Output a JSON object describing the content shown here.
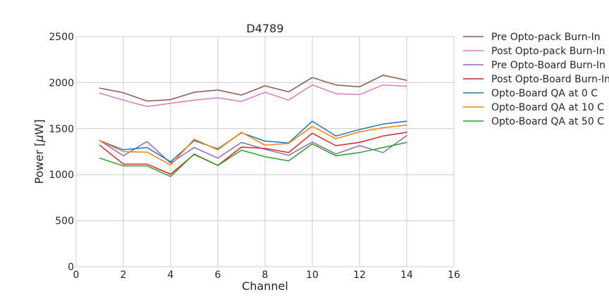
{
  "chart_data": {
    "type": "line",
    "title": "D4789",
    "xlabel": "Channel",
    "ylabel_prefix": "Power [",
    "ylabel_unit_mu": "μ",
    "ylabel_suffix": "W]",
    "xlim": [
      0,
      16
    ],
    "ylim": [
      0,
      2500
    ],
    "xticks": [
      0,
      2,
      4,
      6,
      8,
      10,
      12,
      14,
      16
    ],
    "yticks": [
      0,
      500,
      1000,
      1500,
      2000,
      2500
    ],
    "grid": true,
    "legend_position": "outside-right",
    "x": [
      1,
      2,
      3,
      4,
      5,
      6,
      7,
      8,
      9,
      10,
      11,
      12,
      13,
      14
    ],
    "series": [
      {
        "name": "Pre Opto-pack Burn-In",
        "color": "#8c564b",
        "values": [
          1940,
          1890,
          1800,
          1815,
          1895,
          1920,
          1865,
          1965,
          1900,
          2055,
          1975,
          1955,
          2080,
          2025
        ]
      },
      {
        "name": "Post Opto-pack Burn-In",
        "color": "#e377c2",
        "values": [
          1885,
          1810,
          1740,
          1775,
          1810,
          1835,
          1795,
          1895,
          1810,
          1975,
          1880,
          1870,
          1975,
          1960
        ]
      },
      {
        "name": "Pre Opto-Board Burn-In",
        "color": "#9467bd",
        "values": [
          1370,
          1205,
          1360,
          1125,
          1295,
          1180,
          1350,
          1275,
          1210,
          1355,
          1225,
          1315,
          1240,
          1425
        ]
      },
      {
        "name": "Post Opto-Board Burn-In",
        "color": "#d62728",
        "values": [
          1320,
          1115,
          1115,
          1005,
          1220,
          1100,
          1300,
          1285,
          1240,
          1450,
          1315,
          1350,
          1420,
          1460
        ]
      },
      {
        "name": "Opto-Board QA at 0 C",
        "color": "#1f77b4",
        "values": [
          1370,
          1270,
          1295,
          1140,
          1370,
          1280,
          1455,
          1365,
          1345,
          1580,
          1420,
          1490,
          1550,
          1580
        ]
      },
      {
        "name": "Opto-Board QA at 10 C",
        "color": "#ff7f0e",
        "values": [
          1370,
          1250,
          1245,
          1105,
          1385,
          1270,
          1460,
          1320,
          1340,
          1525,
          1390,
          1465,
          1510,
          1540
        ]
      },
      {
        "name": "Opto-Board QA at 50 C",
        "color": "#2ca02c",
        "values": [
          1180,
          1095,
          1095,
          980,
          1225,
          1100,
          1265,
          1195,
          1150,
          1335,
          1205,
          1240,
          1295,
          1350
        ]
      }
    ]
  }
}
